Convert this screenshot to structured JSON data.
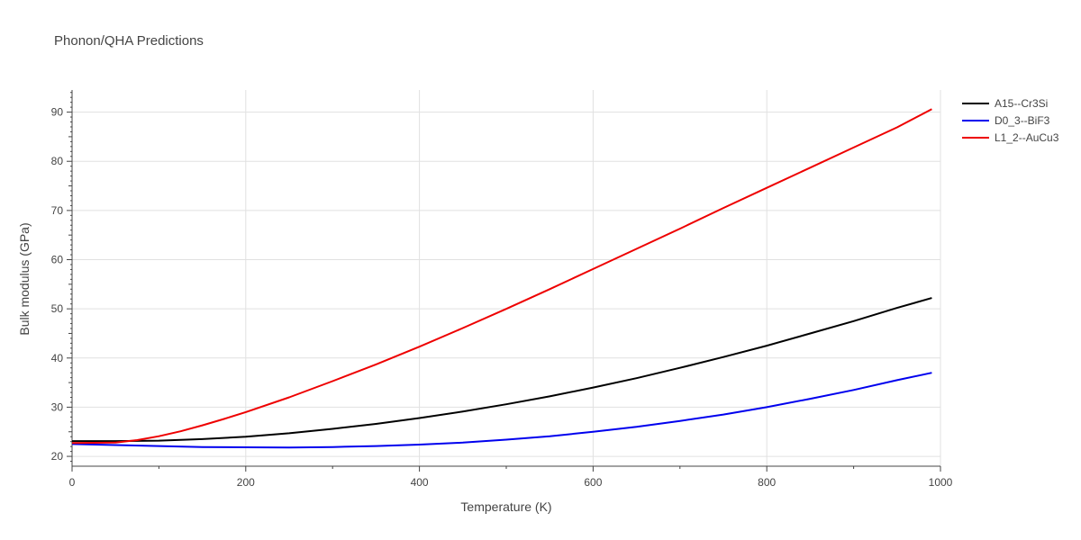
{
  "chart_data": {
    "type": "line",
    "title": "Phonon/QHA Predictions",
    "xlabel": "Temperature (K)",
    "ylabel": "Bulk modulus (GPa)",
    "xlim": [
      0,
      1000
    ],
    "ylim": [
      18,
      94.5
    ],
    "xticks": [
      0,
      200,
      400,
      600,
      800,
      1000
    ],
    "yticks": [
      20,
      30,
      40,
      50,
      60,
      70,
      80,
      90
    ],
    "grid": true,
    "legend_position": "top-right",
    "series": [
      {
        "name": "A15--Cr3Si",
        "color": "#000000",
        "x": [
          0,
          50,
          100,
          150,
          200,
          250,
          300,
          350,
          400,
          450,
          500,
          550,
          600,
          650,
          700,
          750,
          800,
          850,
          900,
          950,
          990
        ],
        "y": [
          23.1,
          23.1,
          23.2,
          23.5,
          24.0,
          24.7,
          25.6,
          26.6,
          27.8,
          29.1,
          30.6,
          32.2,
          34.0,
          35.9,
          38.0,
          40.2,
          42.5,
          45.0,
          47.5,
          50.2,
          52.2
        ]
      },
      {
        "name": "D0_3--BiF3",
        "color": "#0000ee",
        "x": [
          0,
          50,
          100,
          150,
          200,
          250,
          300,
          350,
          400,
          450,
          500,
          550,
          600,
          650,
          700,
          750,
          800,
          850,
          900,
          950,
          990
        ],
        "y": [
          22.5,
          22.3,
          22.1,
          21.9,
          21.85,
          21.8,
          21.9,
          22.1,
          22.4,
          22.8,
          23.4,
          24.1,
          25.0,
          26.0,
          27.2,
          28.5,
          30.0,
          31.7,
          33.5,
          35.5,
          37.0
        ]
      },
      {
        "name": "L1_2--AuCu3",
        "color": "#ee0000",
        "x": [
          0,
          50,
          75,
          100,
          125,
          150,
          175,
          200,
          250,
          300,
          350,
          400,
          450,
          500,
          550,
          600,
          650,
          700,
          750,
          800,
          850,
          900,
          950,
          990
        ],
        "y": [
          22.7,
          22.8,
          23.3,
          24.1,
          25.1,
          26.3,
          27.6,
          29.0,
          32.0,
          35.3,
          38.7,
          42.3,
          46.1,
          50.0,
          54.0,
          58.1,
          62.2,
          66.3,
          70.5,
          74.6,
          78.7,
          82.8,
          86.9,
          90.6
        ]
      }
    ]
  }
}
